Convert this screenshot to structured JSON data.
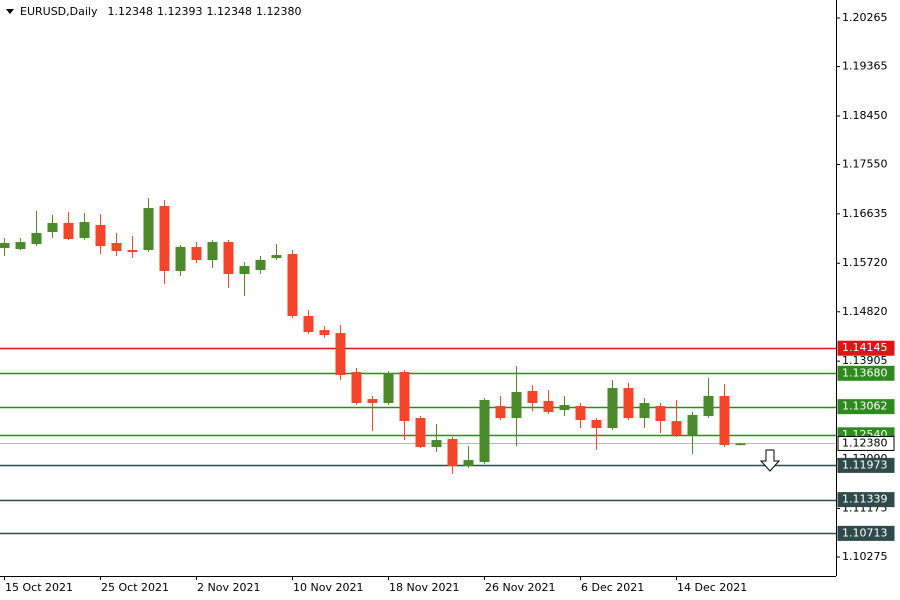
{
  "chart_data": {
    "type": "candlestick",
    "header": {
      "symbol": "EURUSD,Daily",
      "ohlc": [
        "1.12348",
        "1.12393",
        "1.12348",
        "1.12380"
      ]
    },
    "categories": [
      "15 Oct 2021",
      null,
      null,
      null,
      null,
      null,
      "25 Oct 2021",
      null,
      null,
      null,
      null,
      null,
      "2 Nov 2021",
      null,
      null,
      null,
      null,
      null,
      "10 Nov 2021",
      null,
      null,
      null,
      null,
      null,
      "18 Nov 2021",
      null,
      null,
      null,
      null,
      null,
      "26 Nov 2021",
      null,
      null,
      null,
      null,
      null,
      "6 Dec 2021",
      null,
      null,
      null,
      null,
      null,
      "14 Dec 2021",
      null,
      null,
      null,
      null
    ],
    "open": [
      1.16002,
      1.15984,
      1.16076,
      1.16299,
      1.16466,
      1.16188,
      1.16429,
      1.16095,
      1.15965,
      1.15965,
      1.16781,
      1.15576,
      1.16021,
      1.1578,
      1.16113,
      1.1552,
      1.15594,
      1.15817,
      1.15891,
      1.14742,
      1.14482,
      1.14426,
      1.13704,
      1.13203,
      1.13129,
      1.13704,
      1.12851,
      1.12313,
      1.12462,
      1.11961,
      1.12035,
      1.13073,
      1.12851,
      1.13352,
      1.13166,
      1.12999,
      1.13073,
      1.12814,
      1.12666,
      1.13407,
      1.12851,
      1.13073,
      1.12795,
      1.12536,
      1.12888,
      1.13259,
      1.12348
    ],
    "high": [
      1.16188,
      1.16188,
      1.16688,
      1.16614,
      1.16669,
      1.16651,
      1.16632,
      1.1628,
      1.16224,
      1.16929,
      1.16892,
      1.16058,
      1.16113,
      1.1615,
      1.1615,
      1.15743,
      1.15854,
      1.16076,
      1.15965,
      1.14853,
      1.14556,
      1.14575,
      1.13778,
      1.13259,
      1.13722,
      1.13741,
      1.12888,
      1.1274,
      1.12499,
      1.12332,
      1.13222,
      1.13259,
      1.13815,
      1.13463,
      1.1337,
      1.13259,
      1.13129,
      1.12851,
      1.13555,
      1.135,
      1.13222,
      1.13129,
      1.13185,
      1.12962,
      1.13592,
      1.13481,
      1.12393
    ],
    "low": [
      1.15854,
      1.15965,
      1.16039,
      1.16188,
      1.1615,
      1.1615,
      1.15891,
      1.15854,
      1.15817,
      1.15928,
      1.15335,
      1.15483,
      1.15724,
      1.15631,
      1.15261,
      1.15112,
      1.1552,
      1.1578,
      1.14704,
      1.14408,
      1.14334,
      1.13555,
      1.13092,
      1.1261,
      1.13092,
      1.12443,
      1.12295,
      1.12221,
      1.11813,
      1.11924,
      1.11998,
      1.12814,
      1.12332,
      1.12981,
      1.12925,
      1.12888,
      1.12666,
      1.12258,
      1.12629,
      1.12814,
      1.12666,
      1.12573,
      1.12499,
      1.12184,
      1.12851,
      1.12313,
      1.12348
    ],
    "close": [
      1.16095,
      1.16113,
      1.1628,
      1.16466,
      1.16169,
      1.16484,
      1.16039,
      1.15946,
      1.15928,
      1.16743,
      1.15576,
      1.16021,
      1.1578,
      1.16113,
      1.1552,
      1.15668,
      1.1578,
      1.15872,
      1.14742,
      1.14445,
      1.14389,
      1.13648,
      1.13129,
      1.13129,
      1.13685,
      1.12795,
      1.12313,
      1.12443,
      1.11961,
      1.12072,
      1.13185,
      1.12851,
      1.13333,
      1.13129,
      1.12962,
      1.13092,
      1.12814,
      1.12666,
      1.13407,
      1.12851,
      1.13129,
      1.12795,
      1.12536,
      1.12907,
      1.13259,
      1.1235,
      1.1238
    ],
    "up_color": "#4a8a2a",
    "down_color": "#f2472a",
    "ylim": [
      1.09923,
      1.20599
    ],
    "yticks": [
      1.20265,
      1.19365,
      {
        "value": 1.1845,
        "label": "1.18450"
      },
      {
        "value": 1.1755,
        "label": "1.17550"
      },
      1.16635,
      {
        "value": 1.1572,
        "label": "1.15720"
      },
      {
        "value": 1.1482,
        "label": "1.14820"
      },
      1.13905,
      {
        "value": 1.1209,
        "label": "1.12090"
      },
      1.11175,
      1.10275
    ],
    "levels": [
      {
        "value": 1.14145,
        "color": "#e01414"
      },
      {
        "value": 1.1368,
        "label": "1.13680",
        "color": "#2f8a1e"
      },
      {
        "value": 1.13062,
        "color": "#2f8a1e"
      },
      {
        "value": 1.1254,
        "label": "1.12540",
        "color": "#2f8a1e"
      },
      {
        "value": 1.1238,
        "label": "1.12380",
        "color": "#b8b8b8"
      },
      {
        "value": 1.11973,
        "color": "#2f4a4a"
      },
      {
        "value": 1.11339,
        "color": "#2f4a4a"
      },
      {
        "value": 1.10713,
        "color": "#2f4a4a"
      }
    ]
  }
}
